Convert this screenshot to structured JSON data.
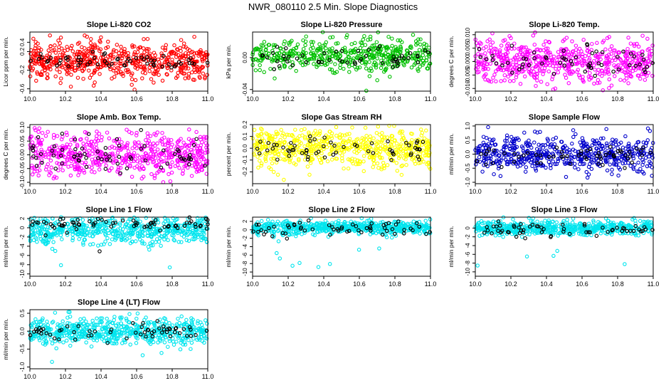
{
  "figure_title": "NWR_080110  2.5 Min. Slope Diagnostics",
  "colors": {
    "overlay": "#000000"
  },
  "chart_data": [
    {
      "type": "scatter",
      "title": "Slope Li-820 CO2",
      "ylabel": "Licor ppm per min.",
      "xlim": [
        10.0,
        11.0
      ],
      "ylim": [
        -0.65,
        0.62
      ],
      "xticks": [
        10.0,
        10.2,
        10.4,
        10.6,
        10.8,
        11.0
      ],
      "xtick_labels": [
        "10.0",
        "10.2",
        "10.4",
        "10.6",
        "10.8",
        "11.0"
      ],
      "yticks": [
        -0.6,
        -0.2,
        0.2,
        0.4
      ],
      "ytick_labels": [
        "-0.6",
        "-0.2",
        "0.2",
        "0.4"
      ],
      "series": [
        {
          "name": "all",
          "color": "#ff0000",
          "n": 600,
          "center": 0.0,
          "spread": 0.2,
          "range": [
            -0.65,
            0.62
          ]
        },
        {
          "name": "selected",
          "color": "#000000",
          "n": 60,
          "center": 0.0,
          "spread": 0.08,
          "range": [
            -0.65,
            0.62
          ]
        }
      ]
    },
    {
      "type": "scatter",
      "title": "Slope Li-820 Pressure",
      "ylabel": "kPa per min.",
      "xlim": [
        10.0,
        11.0
      ],
      "ylim": [
        -0.042,
        0.032
      ],
      "xticks": [
        10.0,
        10.2,
        10.4,
        10.6,
        10.8,
        11.0
      ],
      "xtick_labels": [
        "10.0",
        "10.2",
        "10.4",
        "10.6",
        "10.8",
        "11.0"
      ],
      "yticks": [
        -0.04,
        0.0
      ],
      "ytick_labels": [
        "-0.04",
        "0.00"
      ],
      "series": [
        {
          "name": "all",
          "color": "#00c000",
          "n": 500,
          "center": 0.003,
          "spread": 0.01,
          "range": [
            -0.042,
            0.032
          ]
        },
        {
          "name": "selected",
          "color": "#000000",
          "n": 55,
          "center": 0.0,
          "spread": 0.006,
          "range": [
            -0.042,
            0.032
          ]
        }
      ]
    },
    {
      "type": "scatter",
      "title": "Slope Li-820 Temp.",
      "ylabel": "degrees C per min.",
      "xlim": [
        10.0,
        11.0
      ],
      "ylim": [
        -0.011,
        0.011
      ],
      "xticks": [
        10.0,
        10.2,
        10.4,
        10.6,
        10.8,
        11.0
      ],
      "xtick_labels": [
        "10.0",
        "10.2",
        "10.4",
        "10.6",
        "10.8",
        "11.0"
      ],
      "yticks": [
        -0.01,
        -0.005,
        0.0,
        0.005,
        0.01
      ],
      "ytick_labels": [
        "-0.010",
        "-0.005",
        "0.000",
        "0.005",
        "0.010"
      ],
      "series": [
        {
          "name": "all",
          "color": "#ff00ff",
          "n": 600,
          "center": 0.0,
          "spread": 0.004,
          "range": [
            -0.011,
            0.011
          ]
        },
        {
          "name": "selected",
          "color": "#000000",
          "n": 60,
          "center": 0.0,
          "spread": 0.003,
          "range": [
            -0.011,
            0.011
          ]
        }
      ]
    },
    {
      "type": "scatter",
      "title": "Slope Amb. Box Temp.",
      "ylabel": "degrees C per min.",
      "xlim": [
        10.0,
        11.0
      ],
      "ylim": [
        -0.105,
        0.11
      ],
      "xticks": [
        10.0,
        10.2,
        10.4,
        10.6,
        10.8,
        11.0
      ],
      "xtick_labels": [
        "10.0",
        "10.2",
        "10.4",
        "10.6",
        "10.8",
        "11.0"
      ],
      "yticks": [
        -0.1,
        -0.05,
        0.0,
        0.05,
        0.1
      ],
      "ytick_labels": [
        "-0.10",
        "-0.05",
        "0.00",
        "0.05",
        "0.10"
      ],
      "series": [
        {
          "name": "all",
          "color": "#ff00ff",
          "n": 600,
          "center": 0.0,
          "spread": 0.04,
          "range": [
            -0.105,
            0.11
          ]
        },
        {
          "name": "selected",
          "color": "#000000",
          "n": 70,
          "center": 0.0,
          "spread": 0.035,
          "range": [
            -0.105,
            0.11
          ]
        }
      ]
    },
    {
      "type": "scatter",
      "title": "Slope Gas Stream RH",
      "ylabel": "percent per min.",
      "xlim": [
        10.0,
        11.0
      ],
      "ylim": [
        -0.3,
        0.2
      ],
      "xticks": [
        10.0,
        10.2,
        10.4,
        10.6,
        10.8,
        11.0
      ],
      "xtick_labels": [
        "10.0",
        "10.2",
        "10.4",
        "10.6",
        "10.8",
        "11.0"
      ],
      "yticks": [
        -0.2,
        -0.1,
        0.0,
        0.1,
        0.2
      ],
      "ytick_labels": [
        "-0.2",
        "-0.1",
        "0.0",
        "0.1",
        "0.2"
      ],
      "series": [
        {
          "name": "all",
          "color": "#ffff00",
          "n": 600,
          "center": 0.0,
          "spread": 0.08,
          "range": [
            -0.3,
            0.2
          ]
        },
        {
          "name": "selected",
          "color": "#000000",
          "n": 60,
          "center": 0.0,
          "spread": 0.05,
          "range": [
            -0.3,
            0.2
          ]
        }
      ]
    },
    {
      "type": "scatter",
      "title": "Slope Sample Flow",
      "ylabel": "ml/min per min.",
      "xlim": [
        10.0,
        11.0
      ],
      "ylim": [
        -1.05,
        1.05
      ],
      "xticks": [
        10.0,
        10.2,
        10.4,
        10.6,
        10.8,
        11.0
      ],
      "xtick_labels": [
        "10.0",
        "10.2",
        "10.4",
        "10.6",
        "10.8",
        "11.0"
      ],
      "yticks": [
        -1.0,
        -0.5,
        0.0,
        0.5,
        1.0
      ],
      "ytick_labels": [
        "-1.0",
        "-0.5",
        "0.0",
        "0.5",
        "1.0"
      ],
      "series": [
        {
          "name": "all",
          "color": "#0000cc",
          "n": 550,
          "center": 0.0,
          "spread": 0.3,
          "range": [
            -1.05,
            1.05
          ]
        },
        {
          "name": "selected",
          "color": "#000000",
          "n": 60,
          "center": -0.05,
          "spread": 0.2,
          "range": [
            -1.05,
            1.05
          ]
        }
      ]
    },
    {
      "type": "scatter",
      "title": "Slope Line 1 Flow",
      "ylabel": "ml/min per min.",
      "xlim": [
        10.0,
        11.0
      ],
      "ylim": [
        -10.5,
        2.3
      ],
      "xticks": [
        10.0,
        10.2,
        10.4,
        10.6,
        10.8,
        11.0
      ],
      "xtick_labels": [
        "10.0",
        "10.2",
        "10.4",
        "10.6",
        "10.8",
        "11.0"
      ],
      "yticks": [
        -10,
        -8,
        -6,
        -4,
        -2,
        0,
        2
      ],
      "ytick_labels": [
        "-10",
        "-8",
        "-6",
        "-4",
        "-2",
        "0",
        "2"
      ],
      "series": [
        {
          "name": "all",
          "color": "#00e5ee",
          "n": 600,
          "center": -0.5,
          "spread": 1.5,
          "range": [
            -10.5,
            2.3
          ]
        },
        {
          "name": "selected",
          "color": "#000000",
          "n": 70,
          "center": 0.8,
          "spread": 0.6,
          "range": [
            -10.5,
            2.3
          ]
        }
      ]
    },
    {
      "type": "scatter",
      "title": "Slope Line 2 Flow",
      "ylabel": "ml/min per min.",
      "xlim": [
        10.0,
        11.0
      ],
      "ylim": [
        -11.0,
        3.0
      ],
      "xticks": [
        10.0,
        10.2,
        10.4,
        10.6,
        10.8,
        11.0
      ],
      "xtick_labels": [
        "10.0",
        "10.2",
        "10.4",
        "10.6",
        "10.8",
        "11.0"
      ],
      "yticks": [
        -10,
        -8,
        -6,
        -4,
        -2,
        0,
        2
      ],
      "ytick_labels": [
        "-10",
        "-8",
        "-6",
        "-4",
        "-2",
        "0",
        "2"
      ],
      "series": [
        {
          "name": "all",
          "color": "#00e5ee",
          "n": 600,
          "center": 0.5,
          "spread": 0.8,
          "range": [
            -11.0,
            3.0
          ]
        },
        {
          "name": "selected",
          "color": "#000000",
          "n": 60,
          "center": 0.3,
          "spread": 0.9,
          "range": [
            -11.0,
            3.0
          ]
        }
      ]
    },
    {
      "type": "scatter",
      "title": "Slope Line 3 Flow",
      "ylabel": "ml/min per min.",
      "xlim": [
        10.0,
        11.0
      ],
      "ylim": [
        -11.0,
        2.5
      ],
      "xticks": [
        10.0,
        10.2,
        10.4,
        10.6,
        10.8,
        11.0
      ],
      "xtick_labels": [
        "10.0",
        "10.2",
        "10.4",
        "10.6",
        "10.8",
        "11.0"
      ],
      "yticks": [
        -10,
        -8,
        -6,
        -4,
        -2,
        0
      ],
      "ytick_labels": [
        "-10",
        "-8",
        "-6",
        "-4",
        "-2",
        "0"
      ],
      "series": [
        {
          "name": "all",
          "color": "#00e5ee",
          "n": 600,
          "center": 0.0,
          "spread": 0.8,
          "range": [
            -11.0,
            2.5
          ]
        },
        {
          "name": "selected",
          "color": "#000000",
          "n": 60,
          "center": -0.5,
          "spread": 0.9,
          "range": [
            -11.0,
            2.5
          ]
        }
      ]
    },
    {
      "type": "scatter",
      "title": "Slope Line 4 (LT) Flow",
      "ylabel": "ml/min per min.",
      "xlim": [
        10.0,
        11.0
      ],
      "ylim": [
        -1.05,
        0.6
      ],
      "xticks": [
        10.0,
        10.2,
        10.4,
        10.6,
        10.8,
        11.0
      ],
      "xtick_labels": [
        "10.0",
        "10.2",
        "10.4",
        "10.6",
        "10.8",
        "11.0"
      ],
      "yticks": [
        -1.0,
        -0.5,
        0.0,
        0.5
      ],
      "ytick_labels": [
        "-1.0",
        "-0.5",
        "0.0",
        "0.5"
      ],
      "series": [
        {
          "name": "all",
          "color": "#00e5ee",
          "n": 600,
          "center": 0.0,
          "spread": 0.18,
          "range": [
            -1.05,
            0.6
          ]
        },
        {
          "name": "selected",
          "color": "#000000",
          "n": 60,
          "center": 0.0,
          "spread": 0.12,
          "range": [
            -1.05,
            0.6
          ]
        }
      ]
    }
  ]
}
